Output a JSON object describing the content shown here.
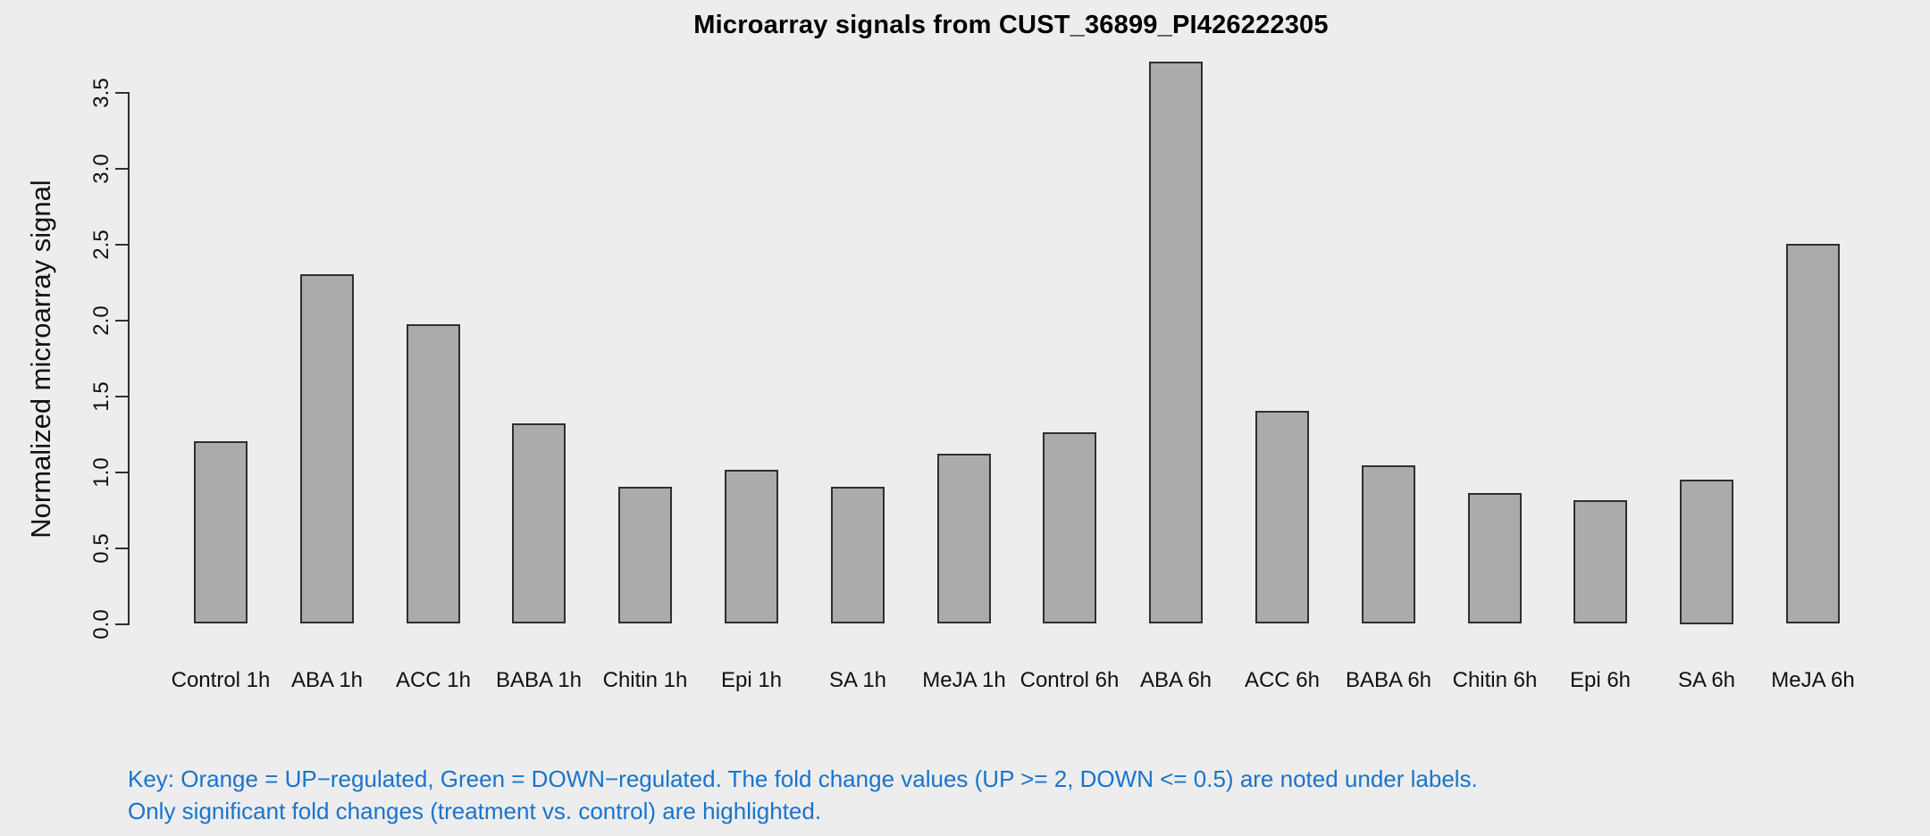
{
  "chart_data": {
    "type": "bar",
    "title": "Microarray signals from CUST_36899_PI426222305",
    "xlabel": "",
    "ylabel": "Normalized microarray signal",
    "categories": [
      "Control 1h",
      "ABA 1h",
      "ACC 1h",
      "BABA 1h",
      "Chitin 1h",
      "Epi 1h",
      "SA 1h",
      "MeJA 1h",
      "Control 6h",
      "ABA 6h",
      "ACC 6h",
      "BABA 6h",
      "Chitin 6h",
      "Epi 6h",
      "SA 6h",
      "MeJA 6h"
    ],
    "values": [
      1.2,
      2.3,
      1.97,
      1.32,
      0.9,
      1.01,
      0.9,
      1.12,
      1.26,
      3.7,
      1.4,
      1.04,
      0.86,
      0.81,
      0.95,
      2.5
    ],
    "ylim": [
      0,
      3.5
    ],
    "yticks": [
      "0.0",
      "0.5",
      "1.0",
      "1.5",
      "2.0",
      "2.5",
      "3.0",
      "3.5"
    ],
    "grid": false,
    "legend": "none",
    "bar_color": "#ABABAB",
    "bar_border_color": "#2F2F2F",
    "axis_color": "#2F2F2F",
    "background_color": "#EDEDED"
  },
  "key": {
    "line1": "Key: Orange = UP−regulated, Green = DOWN−regulated. The fold change values (UP >= 2, DOWN <= 0.5) are noted under labels.",
    "line2": "Only significant fold changes (treatment vs. control) are highlighted.",
    "color": "#1874CD"
  }
}
